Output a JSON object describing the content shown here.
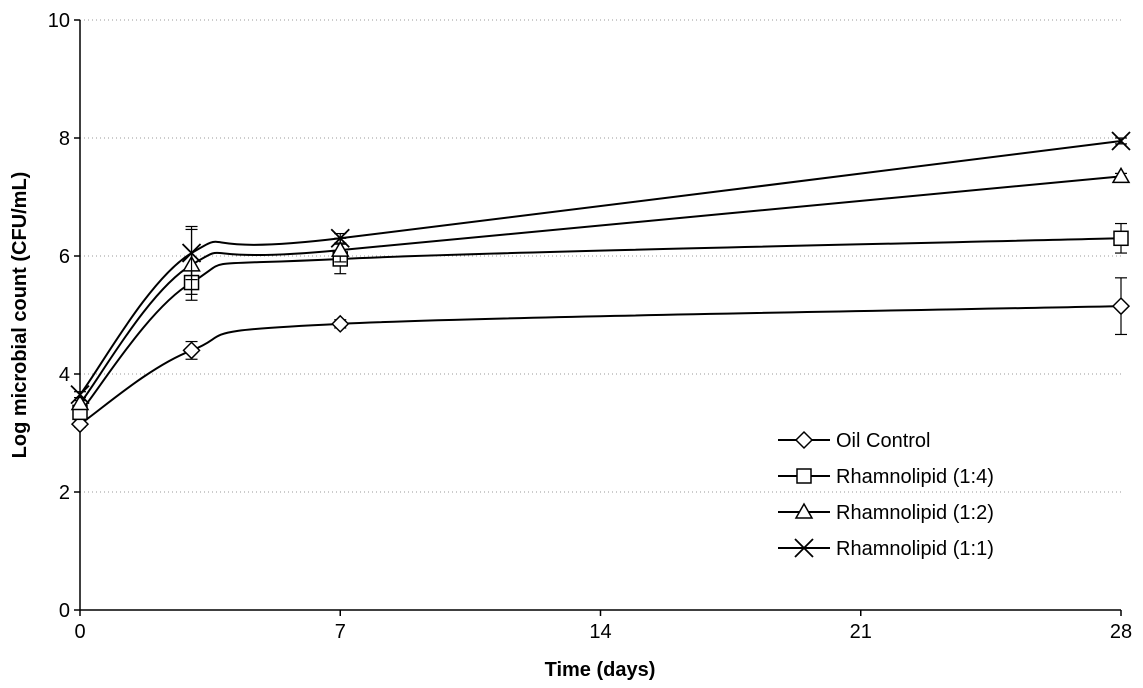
{
  "chart_data": {
    "type": "line",
    "title": "",
    "xlabel": "Time (days)",
    "ylabel": "Log microbial count (CFU/mL)",
    "xlim": [
      0,
      28
    ],
    "ylim": [
      0,
      10
    ],
    "x_ticks": [
      "0",
      "7",
      "14",
      "21",
      "28"
    ],
    "y_ticks": [
      "0",
      "2",
      "4",
      "6",
      "8",
      "10"
    ],
    "grid": "horizontal dotted",
    "legend_position": "bottom-right",
    "x": [
      0,
      3,
      7,
      28
    ],
    "series": [
      {
        "name": "Oil Control",
        "marker": "diamond",
        "values": [
          3.15,
          4.4,
          4.85,
          5.15
        ],
        "error": [
          0.05,
          0.15,
          0.07,
          0.48
        ]
      },
      {
        "name": "Rhamnolipid (1:4)",
        "marker": "square",
        "values": [
          3.35,
          5.55,
          5.95,
          6.3
        ],
        "error": [
          0.05,
          0.2,
          0.25,
          0.25
        ]
      },
      {
        "name": "Rhamnolipid (1:2)",
        "marker": "triangle",
        "values": [
          3.5,
          5.85,
          6.1,
          7.35
        ],
        "error": [
          0.05,
          0.6,
          0.2,
          0.05
        ]
      },
      {
        "name": "Rhamnolipid (1:1)",
        "marker": "x",
        "values": [
          3.65,
          6.05,
          6.3,
          7.95
        ],
        "error": [
          0.05,
          0.45,
          0.08,
          0.05
        ]
      }
    ]
  }
}
